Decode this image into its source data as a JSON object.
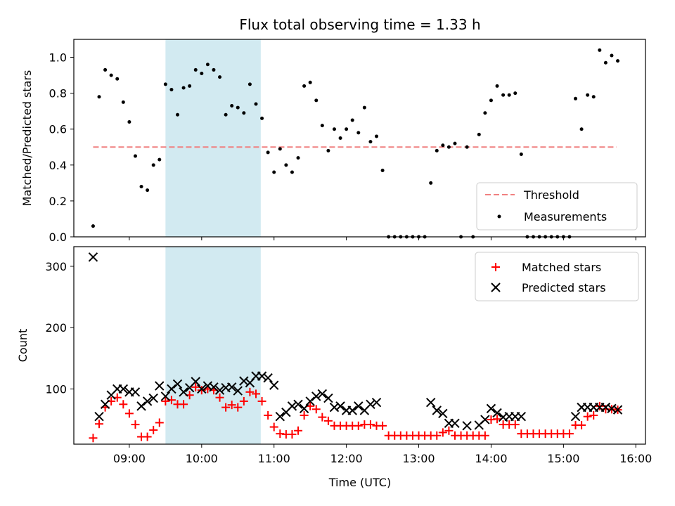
{
  "chart_data": [
    {
      "type": "scatter",
      "title": "Flux total observing time = 1.33 h",
      "xlabel": "",
      "ylabel": "Matched/Predicted stars",
      "xlim": [
        "08:14",
        "16:08"
      ],
      "ylim": [
        0,
        1.1
      ],
      "yticks": [
        0.0,
        0.2,
        0.4,
        0.6,
        0.8,
        1.0
      ],
      "ytick_labels": [
        "0.0",
        "0.2",
        "0.4",
        "0.6",
        "0.8",
        "1.0"
      ],
      "highlight_span": {
        "from": "09:30",
        "to": "10:49",
        "color": "#add8e6"
      },
      "grid": false,
      "legend": {
        "position": "bottom-right",
        "entries": [
          "Threshold",
          "Measurements"
        ]
      },
      "series": [
        {
          "name": "Threshold",
          "kind": "dashed-line",
          "color": "#f08080",
          "x": [
            "08:30",
            "15:44"
          ],
          "y": [
            0.5,
            0.5
          ]
        },
        {
          "name": "Measurements",
          "kind": "points",
          "color": "#000000",
          "x": [
            "08:30",
            "08:35",
            "08:40",
            "08:45",
            "08:50",
            "08:55",
            "09:00",
            "09:05",
            "09:10",
            "09:15",
            "09:20",
            "09:25",
            "09:30",
            "09:35",
            "09:40",
            "09:45",
            "09:50",
            "09:55",
            "10:00",
            "10:05",
            "10:10",
            "10:15",
            "10:20",
            "10:25",
            "10:30",
            "10:35",
            "10:40",
            "10:45",
            "10:50",
            "10:55",
            "11:00",
            "11:05",
            "11:10",
            "11:15",
            "11:20",
            "11:25",
            "11:30",
            "11:35",
            "11:40",
            "11:45",
            "11:50",
            "11:55",
            "12:00",
            "12:05",
            "12:10",
            "12:15",
            "12:20",
            "12:25",
            "12:30",
            "12:35",
            "12:40",
            "12:45",
            "12:50",
            "12:55",
            "13:00",
            "13:05",
            "13:10",
            "13:15",
            "13:20",
            "13:25",
            "13:30",
            "13:35",
            "13:40",
            "13:45",
            "13:50",
            "13:55",
            "14:00",
            "14:05",
            "14:10",
            "14:15",
            "14:20",
            "14:25",
            "14:30",
            "14:35",
            "14:40",
            "14:45",
            "14:50",
            "14:55",
            "15:00",
            "15:05",
            "15:10",
            "15:15",
            "15:20",
            "15:25",
            "15:30",
            "15:35",
            "15:40",
            "15:45"
          ],
          "y": [
            0.06,
            0.78,
            0.93,
            0.9,
            0.88,
            0.75,
            0.64,
            0.45,
            0.28,
            0.26,
            0.4,
            0.43,
            0.85,
            0.82,
            0.68,
            0.83,
            0.84,
            0.93,
            0.91,
            0.96,
            0.93,
            0.89,
            0.68,
            0.73,
            0.72,
            0.69,
            0.85,
            0.74,
            0.66,
            0.47,
            0.36,
            0.49,
            0.4,
            0.36,
            0.44,
            0.84,
            0.86,
            0.76,
            0.62,
            0.48,
            0.6,
            0.55,
            0.6,
            0.65,
            0.58,
            0.72,
            0.53,
            0.56,
            0.37,
            0.0,
            0.0,
            0.0,
            0.0,
            0.0,
            0.0,
            0.0,
            0.3,
            0.48,
            0.51,
            0.5,
            0.52,
            0.0,
            0.5,
            0.0,
            0.57,
            0.69,
            0.76,
            0.84,
            0.79,
            0.79,
            0.8,
            0.46,
            0.0,
            0.0,
            0.0,
            0.0,
            0.0,
            0.0,
            0.0,
            0.0,
            0.77,
            0.6,
            0.79,
            0.78,
            1.04,
            0.97,
            1.01,
            0.98
          ]
        }
      ]
    },
    {
      "type": "scatter",
      "title": "",
      "xlabel": "Time (UTC)",
      "ylabel": "Count",
      "xlim": [
        "08:14",
        "16:08"
      ],
      "ylim": [
        10,
        332
      ],
      "xticks": [
        "09:00",
        "10:00",
        "11:00",
        "12:00",
        "13:00",
        "14:00",
        "15:00",
        "16:00"
      ],
      "yticks": [
        100,
        200,
        300
      ],
      "ytick_labels": [
        "100",
        "200",
        "300"
      ],
      "highlight_span": {
        "from": "09:30",
        "to": "10:49",
        "color": "#add8e6"
      },
      "grid": false,
      "legend": {
        "position": "top-right",
        "entries": [
          "Matched stars",
          "Predicted stars"
        ]
      },
      "series": [
        {
          "name": "Matched stars",
          "marker": "+",
          "color": "#ff0000",
          "x": [
            "08:30",
            "08:35",
            "08:40",
            "08:45",
            "08:50",
            "08:55",
            "09:00",
            "09:05",
            "09:10",
            "09:15",
            "09:20",
            "09:25",
            "09:30",
            "09:35",
            "09:40",
            "09:45",
            "09:50",
            "09:55",
            "10:00",
            "10:05",
            "10:10",
            "10:15",
            "10:20",
            "10:25",
            "10:30",
            "10:35",
            "10:40",
            "10:45",
            "10:50",
            "10:55",
            "11:00",
            "11:05",
            "11:10",
            "11:15",
            "11:20",
            "11:25",
            "11:30",
            "11:35",
            "11:40",
            "11:45",
            "11:50",
            "11:55",
            "12:00",
            "12:05",
            "12:10",
            "12:15",
            "12:20",
            "12:25",
            "12:30",
            "12:35",
            "12:40",
            "12:45",
            "12:50",
            "12:55",
            "13:00",
            "13:05",
            "13:10",
            "13:15",
            "13:20",
            "13:25",
            "13:30",
            "13:35",
            "13:40",
            "13:45",
            "13:50",
            "13:55",
            "14:00",
            "14:05",
            "14:10",
            "14:15",
            "14:20",
            "14:25",
            "14:30",
            "14:35",
            "14:40",
            "14:45",
            "14:50",
            "14:55",
            "15:00",
            "15:05",
            "15:10",
            "15:15",
            "15:20",
            "15:25",
            "15:30",
            "15:35",
            "15:40",
            "15:45"
          ],
          "y": [
            20,
            43,
            70,
            80,
            86,
            75,
            60,
            42,
            22,
            22,
            33,
            45,
            80,
            82,
            75,
            75,
            90,
            103,
            98,
            100,
            98,
            86,
            70,
            74,
            70,
            80,
            95,
            92,
            80,
            57,
            38,
            27,
            26,
            26,
            32,
            57,
            72,
            67,
            54,
            48,
            40,
            40,
            40,
            40,
            40,
            42,
            42,
            40,
            40,
            24,
            24,
            24,
            24,
            24,
            24,
            24,
            24,
            24,
            29,
            32,
            24,
            24,
            24,
            24,
            24,
            24,
            50,
            51,
            42,
            42,
            42,
            27,
            27,
            27,
            27,
            27,
            27,
            27,
            27,
            27,
            41,
            41,
            55,
            57,
            72,
            67,
            67,
            66
          ]
        },
        {
          "name": "Predicted stars",
          "marker": "x",
          "color": "#000000",
          "x": [
            "08:30",
            "08:35",
            "08:40",
            "08:45",
            "08:50",
            "08:55",
            "09:00",
            "09:05",
            "09:10",
            "09:15",
            "09:20",
            "09:25",
            "09:30",
            "09:35",
            "09:40",
            "09:45",
            "09:50",
            "09:55",
            "10:00",
            "10:05",
            "10:10",
            "10:15",
            "10:20",
            "10:25",
            "10:30",
            "10:35",
            "10:40",
            "10:45",
            "10:50",
            "10:55",
            "11:00",
            "11:05",
            "11:10",
            "11:15",
            "11:20",
            "11:25",
            "11:30",
            "11:35",
            "11:40",
            "11:45",
            "11:50",
            "11:55",
            "12:00",
            "12:05",
            "12:10",
            "12:15",
            "12:20",
            "12:25",
            "13:10",
            "13:15",
            "13:20",
            "13:25",
            "13:30",
            "13:40",
            "13:50",
            "13:55",
            "14:00",
            "14:05",
            "14:10",
            "14:15",
            "14:20",
            "14:25",
            "15:10",
            "15:15",
            "15:20",
            "15:25",
            "15:30",
            "15:35",
            "15:40",
            "15:45"
          ],
          "y": [
            315,
            55,
            75,
            90,
            100,
            100,
            95,
            95,
            72,
            80,
            85,
            105,
            88,
            100,
            108,
            95,
            102,
            112,
            100,
            105,
            103,
            98,
            102,
            103,
            97,
            113,
            110,
            121,
            121,
            118,
            106,
            55,
            62,
            72,
            75,
            68,
            80,
            88,
            92,
            85,
            70,
            72,
            65,
            65,
            72,
            65,
            75,
            78,
            78,
            65,
            60,
            44,
            44,
            40,
            41,
            50,
            68,
            61,
            54,
            55,
            55,
            55,
            55,
            70,
            70,
            70,
            70,
            70,
            68,
            66
          ]
        }
      ]
    }
  ]
}
